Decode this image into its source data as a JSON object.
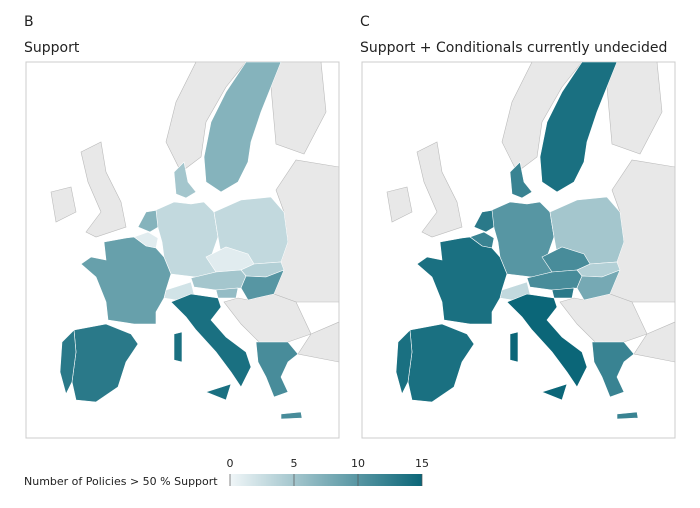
{
  "panels": [
    {
      "label": "B",
      "title": "Support",
      "values": [
        7,
        5,
        7,
        1,
        3,
        3,
        1,
        4,
        5,
        10,
        2,
        6,
        9,
        14,
        13,
        13,
        11
      ]
    },
    {
      "label": "C",
      "title": "Support + Conditionals currently undecided",
      "values": [
        14,
        12,
        13,
        12,
        10,
        5,
        11,
        4,
        11,
        8,
        3,
        13,
        14,
        15,
        14,
        14,
        12
      ]
    }
  ],
  "legend": {
    "title": "Number of Policies > 50 % Support",
    "lim": [
      0,
      15
    ],
    "ticks": [
      0,
      5,
      10,
      15
    ],
    "colors": [
      "#f0f6f8",
      "#0b6678"
    ]
  }
}
